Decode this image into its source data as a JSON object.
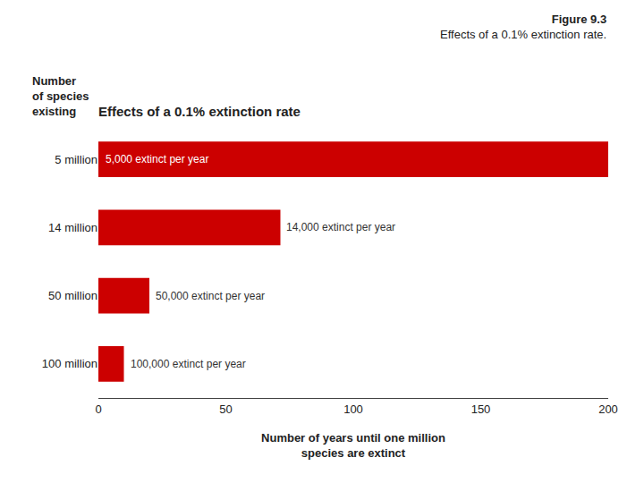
{
  "chart_data": {
    "type": "bar",
    "orientation": "horizontal",
    "suptitle": "Figure 9.3",
    "subtitle": "Effects of a 0.1% extinction rate.",
    "title": "Effects of a 0.1% extinction rate",
    "ylabel": [
      "Number",
      "of species",
      "existing"
    ],
    "xlabel": [
      "Number of years until one million",
      "species are extinct"
    ],
    "categories": [
      "5 million",
      "14 million",
      "50 million",
      "100 million"
    ],
    "values": [
      200,
      71.4,
      20,
      10
    ],
    "annotations": [
      {
        "text": "5,000 extinct per year",
        "category": "5 million"
      },
      {
        "text": "14,000 extinct per year",
        "category": "14 million"
      },
      {
        "text": "50,000 extinct per year",
        "category": "50 million"
      },
      {
        "text": "100,000 extinct per year",
        "category": "100 million"
      }
    ],
    "color": "#cc0000",
    "xlim": [
      0,
      200
    ],
    "xticks": [
      0,
      50,
      100,
      150,
      200
    ],
    "grid": false
  }
}
